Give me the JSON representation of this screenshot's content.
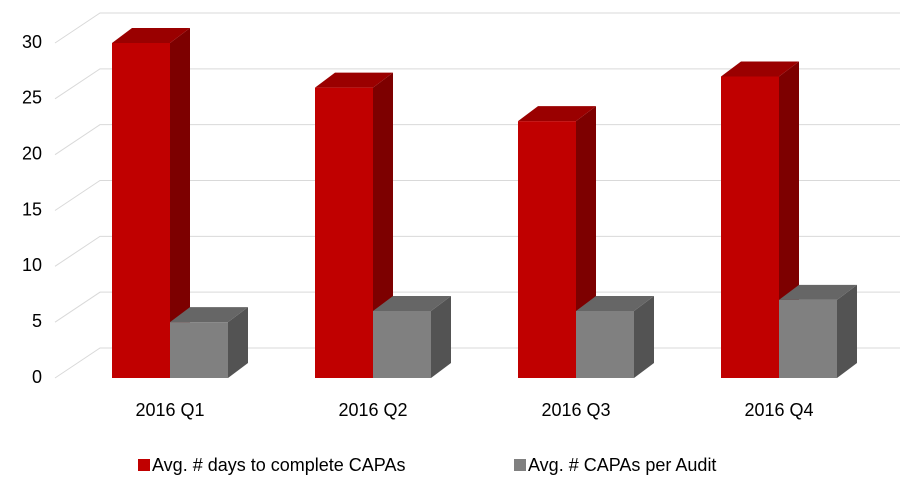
{
  "chart_data": {
    "type": "bar3d",
    "categories": [
      "2016 Q1",
      "2016 Q2",
      "2016 Q3",
      "2016 Q4"
    ],
    "series": [
      {
        "name": "Avg. # days to complete CAPAs",
        "color": "#c00000",
        "values": [
          30,
          26,
          23,
          27
        ]
      },
      {
        "name": "Avg. # CAPAs per Audit",
        "color": "#808080",
        "values": [
          5,
          6,
          6,
          7
        ]
      }
    ],
    "ylim": [
      0,
      30
    ],
    "yticks": [
      0,
      5,
      10,
      15,
      20,
      25,
      30
    ],
    "grid": true,
    "legend": "bottom"
  }
}
